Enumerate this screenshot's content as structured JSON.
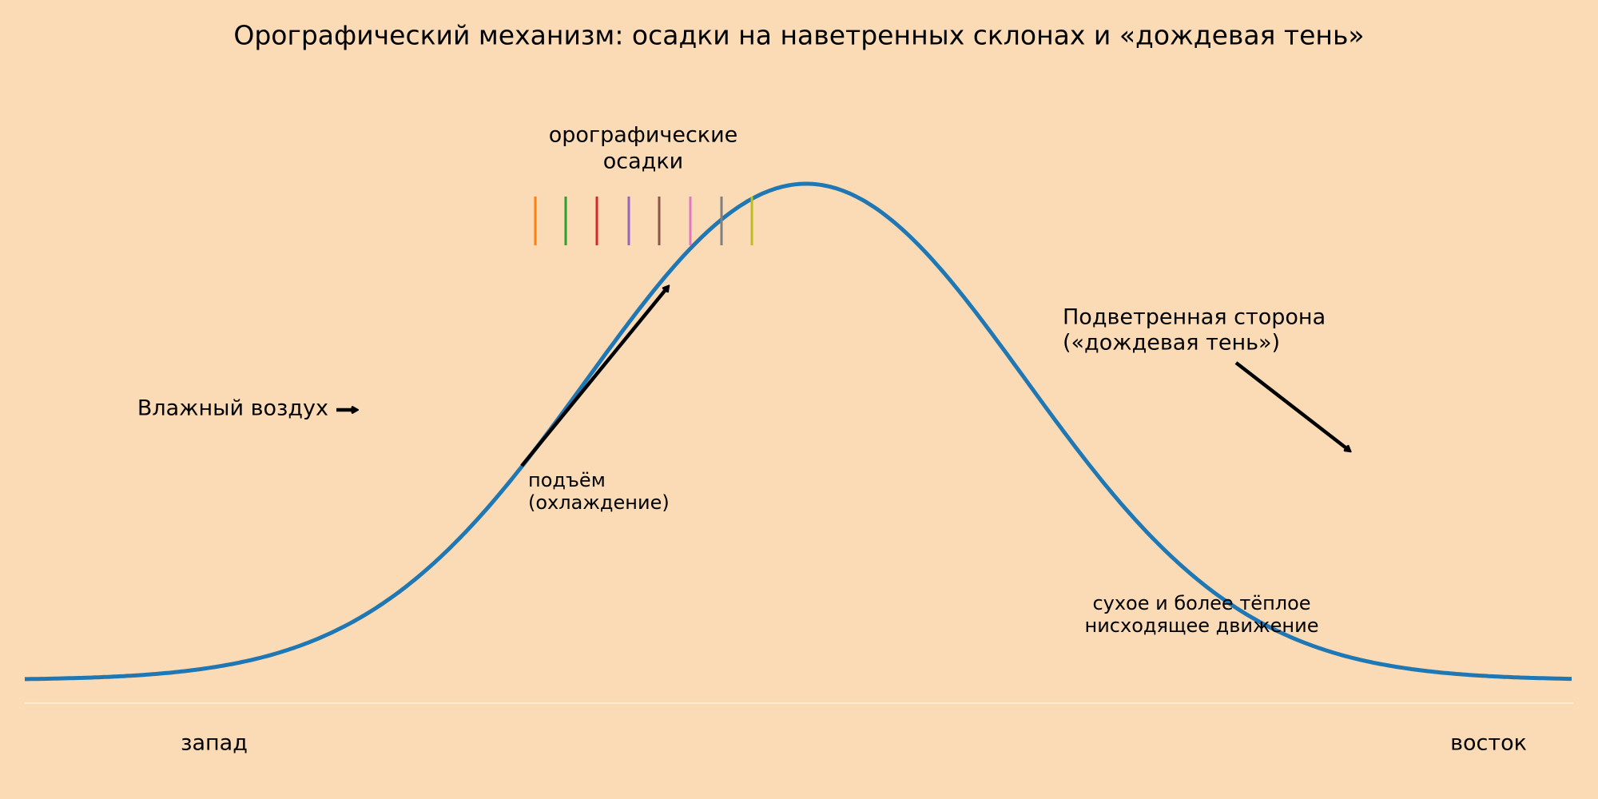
{
  "title": "Орографический механизм: осадки на наветренных склонах и «дождевая тень»",
  "precipitation_label": [
    "орографические",
    "осадки"
  ],
  "moist_air_label": "Влажный воздух",
  "rise_label": [
    "подъём",
    "(охлаждение)"
  ],
  "leeward_label": [
    "Подветренная сторона",
    "(«дождевая тень»)"
  ],
  "descent_label": [
    "сухое и более тёплое",
    "нисходящее движение"
  ],
  "axis_labels": {
    "west": "запад",
    "east": "восток"
  }
}
